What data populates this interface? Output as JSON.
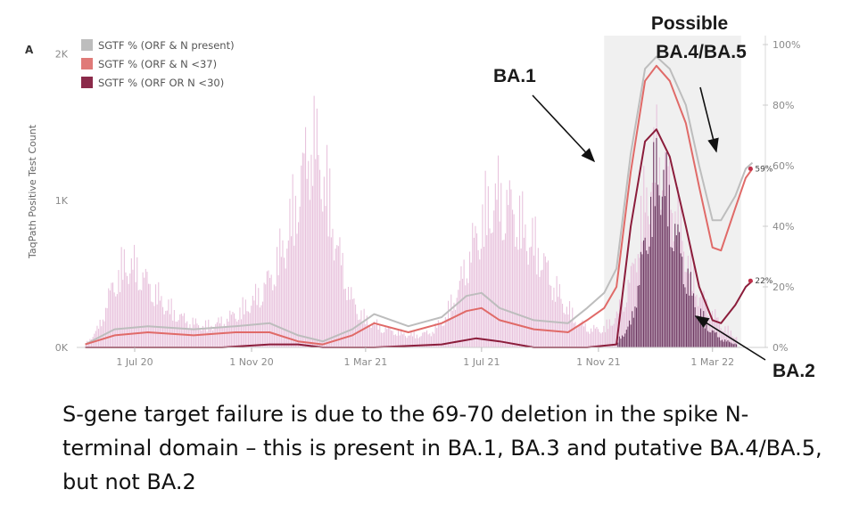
{
  "chart_data": {
    "type": "bar+line",
    "panel_label": "A",
    "x_tick_labels": [
      "1 Jul 20",
      "1 Nov 20",
      "1 Mar 21",
      "1 Jul 21",
      "1 Nov 21",
      "1 Mar 22"
    ],
    "y_left": {
      "label": "TaqPath Positive Test Count",
      "tick_labels": [
        "0K",
        "1K",
        "2K"
      ],
      "ylim": [
        0,
        2100
      ]
    },
    "y_right": {
      "tick_labels": [
        "0%",
        "20%",
        "40%",
        "60%",
        "80%",
        "100%"
      ],
      "ylim": [
        0,
        100
      ]
    },
    "legend": [
      {
        "label": "SGTF % (ORF & N present)",
        "color": "#bdbdbd"
      },
      {
        "label": "SGTF % (ORF & N <37)",
        "color": "#e07a78"
      },
      {
        "label": "SGTF % (ORF OR N <30)",
        "color": "#8b2a4a"
      }
    ],
    "bar_colors": {
      "counts": "#e8c3dd",
      "sgtf_counts": "#6e3a63"
    },
    "line_colors": {
      "grey": "#bdbdbd",
      "red": "#e06a68",
      "dark": "#8b1d3b"
    },
    "highlight_region": {
      "start": "2021-11-07",
      "end": "2022-03-31",
      "color": "#f0f0f0"
    },
    "test_counts_weekly": [
      {
        "week": "2020-05-10",
        "count": 30
      },
      {
        "week": "2020-05-24",
        "count": 180
      },
      {
        "week": "2020-06-07",
        "count": 540
      },
      {
        "week": "2020-06-21",
        "count": 760
      },
      {
        "week": "2020-07-05",
        "count": 690
      },
      {
        "week": "2020-07-19",
        "count": 520
      },
      {
        "week": "2020-08-02",
        "count": 380
      },
      {
        "week": "2020-08-16",
        "count": 280
      },
      {
        "week": "2020-08-30",
        "count": 220
      },
      {
        "week": "2020-09-13",
        "count": 190
      },
      {
        "week": "2020-09-27",
        "count": 220
      },
      {
        "week": "2020-10-11",
        "count": 280
      },
      {
        "week": "2020-10-25",
        "count": 360
      },
      {
        "week": "2020-11-08",
        "count": 470
      },
      {
        "week": "2020-11-22",
        "count": 650
      },
      {
        "week": "2020-12-06",
        "count": 950
      },
      {
        "week": "2020-12-20",
        "count": 1400
      },
      {
        "week": "2021-01-03",
        "count": 1900
      },
      {
        "week": "2021-01-17",
        "count": 1500
      },
      {
        "week": "2021-01-31",
        "count": 850
      },
      {
        "week": "2021-02-14",
        "count": 420
      },
      {
        "week": "2021-02-28",
        "count": 250
      },
      {
        "week": "2021-03-14",
        "count": 190
      },
      {
        "week": "2021-03-28",
        "count": 150
      },
      {
        "week": "2021-04-11",
        "count": 120
      },
      {
        "week": "2021-04-25",
        "count": 110
      },
      {
        "week": "2021-05-09",
        "count": 140
      },
      {
        "week": "2021-05-23",
        "count": 260
      },
      {
        "week": "2021-06-06",
        "count": 520
      },
      {
        "week": "2021-06-20",
        "count": 880
      },
      {
        "week": "2021-07-04",
        "count": 1200
      },
      {
        "week": "2021-07-18",
        "count": 1350
      },
      {
        "week": "2021-08-01",
        "count": 1250
      },
      {
        "week": "2021-08-15",
        "count": 1050
      },
      {
        "week": "2021-08-29",
        "count": 880
      },
      {
        "week": "2021-09-12",
        "count": 600
      },
      {
        "week": "2021-09-26",
        "count": 380
      },
      {
        "week": "2021-10-10",
        "count": 220
      },
      {
        "week": "2021-10-24",
        "count": 160
      },
      {
        "week": "2021-11-07",
        "count": 170
      },
      {
        "week": "2021-11-21",
        "count": 300
      },
      {
        "week": "2021-12-05",
        "count": 620
      },
      {
        "week": "2021-12-19",
        "count": 1300
      },
      {
        "week": "2022-01-02",
        "count": 1750
      },
      {
        "week": "2022-01-16",
        "count": 1400
      },
      {
        "week": "2022-01-30",
        "count": 900
      },
      {
        "week": "2022-02-13",
        "count": 500
      },
      {
        "week": "2022-02-27",
        "count": 320
      },
      {
        "week": "2022-03-13",
        "count": 170
      },
      {
        "week": "2022-03-27",
        "count": 90
      }
    ],
    "sgtf_counts_weekly": [
      {
        "week": "2021-11-21",
        "count": 60
      },
      {
        "week": "2021-12-05",
        "count": 220
      },
      {
        "week": "2021-12-19",
        "count": 900
      },
      {
        "week": "2022-01-02",
        "count": 1650
      },
      {
        "week": "2022-01-16",
        "count": 1200
      },
      {
        "week": "2022-01-30",
        "count": 700
      },
      {
        "week": "2022-02-13",
        "count": 330
      },
      {
        "week": "2022-02-27",
        "count": 150
      },
      {
        "week": "2022-03-13",
        "count": 60
      },
      {
        "week": "2022-03-27",
        "count": 30
      }
    ],
    "series": [
      {
        "name": "SGTF % (ORF & N present)",
        "points": [
          {
            "date": "2020-05-10",
            "pct": 1
          },
          {
            "date": "2020-06-10",
            "pct": 6
          },
          {
            "date": "2020-07-15",
            "pct": 7
          },
          {
            "date": "2020-09-01",
            "pct": 6
          },
          {
            "date": "2020-10-15",
            "pct": 7
          },
          {
            "date": "2020-11-20",
            "pct": 8
          },
          {
            "date": "2020-12-20",
            "pct": 4
          },
          {
            "date": "2021-01-15",
            "pct": 2
          },
          {
            "date": "2021-02-15",
            "pct": 6
          },
          {
            "date": "2021-03-10",
            "pct": 11
          },
          {
            "date": "2021-04-15",
            "pct": 7
          },
          {
            "date": "2021-05-20",
            "pct": 10
          },
          {
            "date": "2021-06-15",
            "pct": 17
          },
          {
            "date": "2021-07-01",
            "pct": 18
          },
          {
            "date": "2021-07-20",
            "pct": 13
          },
          {
            "date": "2021-08-25",
            "pct": 9
          },
          {
            "date": "2021-09-30",
            "pct": 8
          },
          {
            "date": "2021-10-20",
            "pct": 13
          },
          {
            "date": "2021-11-07",
            "pct": 18
          },
          {
            "date": "2021-11-20",
            "pct": 26
          },
          {
            "date": "2021-12-05",
            "pct": 64
          },
          {
            "date": "2021-12-20",
            "pct": 92
          },
          {
            "date": "2022-01-01",
            "pct": 96
          },
          {
            "date": "2022-01-15",
            "pct": 92
          },
          {
            "date": "2022-02-01",
            "pct": 80
          },
          {
            "date": "2022-02-15",
            "pct": 60
          },
          {
            "date": "2022-03-01",
            "pct": 42
          },
          {
            "date": "2022-03-10",
            "pct": 42
          },
          {
            "date": "2022-03-25",
            "pct": 50
          },
          {
            "date": "2022-04-05",
            "pct": 59
          },
          {
            "date": "2022-04-12",
            "pct": 61
          }
        ]
      },
      {
        "name": "SGTF % (ORF & N <37)",
        "points": [
          {
            "date": "2020-05-10",
            "pct": 1
          },
          {
            "date": "2020-06-10",
            "pct": 4
          },
          {
            "date": "2020-07-15",
            "pct": 5
          },
          {
            "date": "2020-09-01",
            "pct": 4
          },
          {
            "date": "2020-10-15",
            "pct": 5
          },
          {
            "date": "2020-11-20",
            "pct": 5
          },
          {
            "date": "2020-12-20",
            "pct": 2
          },
          {
            "date": "2021-01-15",
            "pct": 1
          },
          {
            "date": "2021-02-15",
            "pct": 4
          },
          {
            "date": "2021-03-10",
            "pct": 8
          },
          {
            "date": "2021-04-15",
            "pct": 5
          },
          {
            "date": "2021-05-20",
            "pct": 8
          },
          {
            "date": "2021-06-15",
            "pct": 12
          },
          {
            "date": "2021-07-01",
            "pct": 13
          },
          {
            "date": "2021-07-20",
            "pct": 9
          },
          {
            "date": "2021-08-25",
            "pct": 6
          },
          {
            "date": "2021-09-30",
            "pct": 5
          },
          {
            "date": "2021-10-20",
            "pct": 9
          },
          {
            "date": "2021-11-07",
            "pct": 13
          },
          {
            "date": "2021-11-20",
            "pct": 20
          },
          {
            "date": "2021-12-05",
            "pct": 58
          },
          {
            "date": "2021-12-20",
            "pct": 88
          },
          {
            "date": "2022-01-01",
            "pct": 93
          },
          {
            "date": "2022-01-15",
            "pct": 88
          },
          {
            "date": "2022-02-01",
            "pct": 74
          },
          {
            "date": "2022-02-15",
            "pct": 53
          },
          {
            "date": "2022-03-01",
            "pct": 33
          },
          {
            "date": "2022-03-10",
            "pct": 32
          },
          {
            "date": "2022-03-25",
            "pct": 46
          },
          {
            "date": "2022-04-05",
            "pct": 56
          },
          {
            "date": "2022-04-12",
            "pct": 59
          }
        ]
      },
      {
        "name": "SGTF % (ORF OR N <30)",
        "points": [
          {
            "date": "2020-05-10",
            "pct": 0
          },
          {
            "date": "2020-07-15",
            "pct": 0
          },
          {
            "date": "2020-10-01",
            "pct": 0
          },
          {
            "date": "2020-11-20",
            "pct": 1
          },
          {
            "date": "2020-12-20",
            "pct": 1
          },
          {
            "date": "2021-01-15",
            "pct": 0
          },
          {
            "date": "2021-03-10",
            "pct": 0
          },
          {
            "date": "2021-05-20",
            "pct": 1
          },
          {
            "date": "2021-06-25",
            "pct": 3
          },
          {
            "date": "2021-07-20",
            "pct": 2
          },
          {
            "date": "2021-08-25",
            "pct": 0
          },
          {
            "date": "2021-10-20",
            "pct": 0
          },
          {
            "date": "2021-11-20",
            "pct": 1
          },
          {
            "date": "2021-12-05",
            "pct": 40
          },
          {
            "date": "2021-12-20",
            "pct": 68
          },
          {
            "date": "2022-01-01",
            "pct": 72
          },
          {
            "date": "2022-01-15",
            "pct": 63
          },
          {
            "date": "2022-02-01",
            "pct": 40
          },
          {
            "date": "2022-02-15",
            "pct": 20
          },
          {
            "date": "2022-03-01",
            "pct": 9
          },
          {
            "date": "2022-03-10",
            "pct": 8
          },
          {
            "date": "2022-03-25",
            "pct": 14
          },
          {
            "date": "2022-04-05",
            "pct": 20
          },
          {
            "date": "2022-04-12",
            "pct": 22
          }
        ]
      }
    ],
    "end_labels": [
      {
        "text": "59%",
        "date": "2022-04-10",
        "pct": 59
      },
      {
        "text": "22%",
        "date": "2022-04-10",
        "pct": 22
      }
    ],
    "annotations": {
      "ba1": "BA.1",
      "ba45_line1": "Possible",
      "ba45_line2": "BA.4/BA.5",
      "ba2": "BA.2"
    }
  },
  "caption": "S-gene target failure is due to the 69-70 deletion in the spike N-terminal domain – this is present in BA.1, BA.3 and putative BA.4/BA.5, but not BA.2"
}
